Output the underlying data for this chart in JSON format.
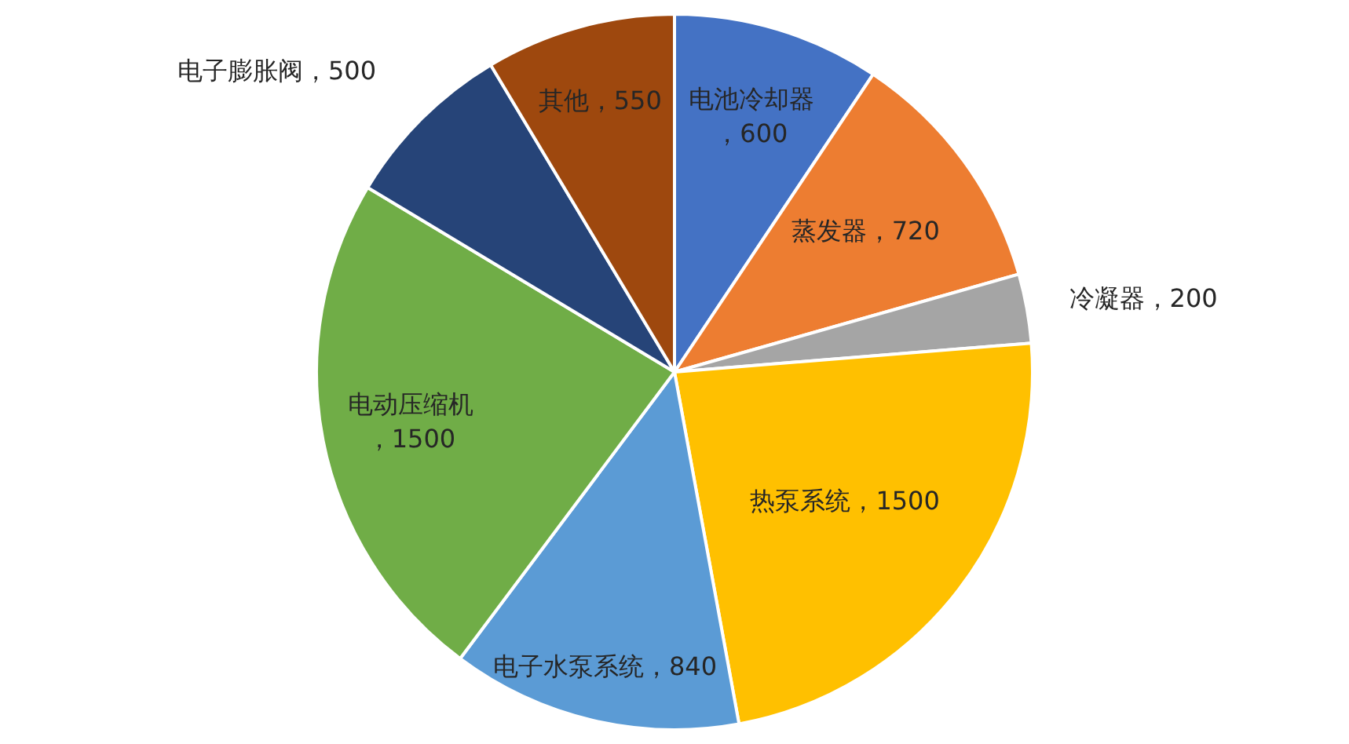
{
  "chart_data": {
    "type": "pie",
    "categories": [
      "电池冷却器",
      "蒸发器",
      "冷凝器",
      "热泵系统",
      "电子水泵系统",
      "电动压缩机",
      "电子膨胀阀",
      "其他"
    ],
    "values": [
      600,
      720,
      200,
      1500,
      840,
      1500,
      500,
      550
    ],
    "colors": [
      "#4472c4",
      "#ed7d31",
      "#a5a5a5",
      "#ffc000",
      "#5b9bd5",
      "#70ad47",
      "#264478",
      "#9e480e"
    ],
    "value_labels": [
      "，600",
      "，720",
      "，200",
      "，1500",
      "，840",
      "，1500",
      "，500",
      "，550"
    ],
    "legend": false
  }
}
